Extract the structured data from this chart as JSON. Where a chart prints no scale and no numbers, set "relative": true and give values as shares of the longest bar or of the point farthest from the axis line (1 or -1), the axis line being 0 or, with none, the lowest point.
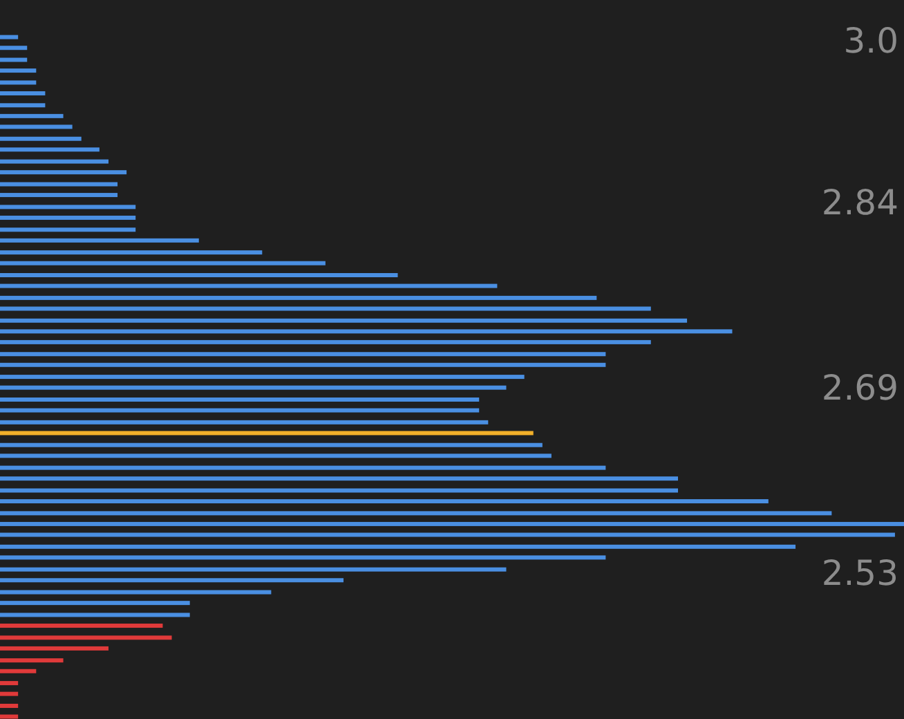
{
  "chart_data": {
    "type": "bar",
    "orientation": "horizontal",
    "relative": true,
    "x": [
      2.98,
      2.971,
      2.961,
      2.952,
      2.942,
      2.933,
      2.923,
      2.914,
      2.905,
      2.895,
      2.886,
      2.876,
      2.867,
      2.857,
      2.848,
      2.838,
      2.829,
      2.819,
      2.81,
      2.8,
      2.791,
      2.781,
      2.772,
      2.762,
      2.753,
      2.743,
      2.734,
      2.725,
      2.715,
      2.706,
      2.696,
      2.687,
      2.677,
      2.668,
      2.658,
      2.649,
      2.639,
      2.63,
      2.62,
      2.611,
      2.601,
      2.592,
      2.582,
      2.573,
      2.564,
      2.554,
      2.545,
      2.535,
      2.526,
      2.516,
      2.507,
      2.497,
      2.488,
      2.478,
      2.469,
      2.459,
      2.45,
      2.44,
      2.431,
      2.421,
      2.412
    ],
    "values": [
      0.02,
      0.03,
      0.03,
      0.04,
      0.04,
      0.05,
      0.05,
      0.07,
      0.08,
      0.09,
      0.11,
      0.12,
      0.14,
      0.13,
      0.13,
      0.15,
      0.15,
      0.15,
      0.22,
      0.29,
      0.36,
      0.44,
      0.55,
      0.66,
      0.72,
      0.76,
      0.81,
      0.72,
      0.67,
      0.67,
      0.58,
      0.56,
      0.53,
      0.53,
      0.54,
      0.59,
      0.6,
      0.61,
      0.67,
      0.75,
      0.75,
      0.85,
      0.92,
      1,
      0.99,
      0.88,
      0.67,
      0.56,
      0.38,
      0.3,
      0.21,
      0.21,
      0.18,
      0.19,
      0.12,
      0.07,
      0.04,
      0.02,
      0.02,
      0.02,
      0.02
    ],
    "colors": [
      "#4a8fe2",
      "#4a8fe2",
      "#4a8fe2",
      "#4a8fe2",
      "#4a8fe2",
      "#4a8fe2",
      "#4a8fe2",
      "#4a8fe2",
      "#4a8fe2",
      "#4a8fe2",
      "#4a8fe2",
      "#4a8fe2",
      "#4a8fe2",
      "#4a8fe2",
      "#4a8fe2",
      "#4a8fe2",
      "#4a8fe2",
      "#4a8fe2",
      "#4a8fe2",
      "#4a8fe2",
      "#4a8fe2",
      "#4a8fe2",
      "#4a8fe2",
      "#4a8fe2",
      "#4a8fe2",
      "#4a8fe2",
      "#4a8fe2",
      "#4a8fe2",
      "#4a8fe2",
      "#4a8fe2",
      "#4a8fe2",
      "#4a8fe2",
      "#4a8fe2",
      "#4a8fe2",
      "#4a8fe2",
      "#f2b02a",
      "#4a8fe2",
      "#4a8fe2",
      "#4a8fe2",
      "#4a8fe2",
      "#4a8fe2",
      "#4a8fe2",
      "#4a8fe2",
      "#4a8fe2",
      "#4a8fe2",
      "#4a8fe2",
      "#4a8fe2",
      "#4a8fe2",
      "#4a8fe2",
      "#4a8fe2",
      "#4a8fe2",
      "#4a8fe2",
      "#e03a3a",
      "#e03a3a",
      "#e03a3a",
      "#e03a3a",
      "#e03a3a",
      "#e03a3a",
      "#e03a3a",
      "#e03a3a",
      "#e03a3a"
    ],
    "ylim": [
      2.41,
      3.011
    ],
    "yticks": [
      {
        "value": 2.975,
        "label": "3.0"
      },
      2.84,
      {
        "value": 2.685,
        "label": "2.69"
      },
      2.53
    ]
  }
}
